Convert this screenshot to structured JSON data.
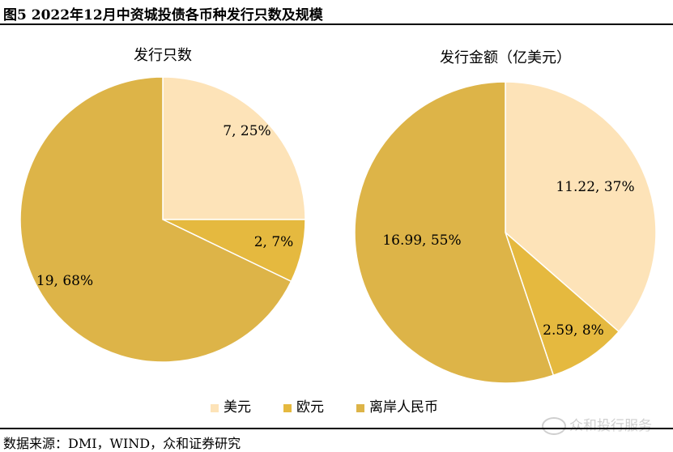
{
  "figure_title": "图5 2022年12月中资城投债各币种发行只数及规模",
  "source": "数据来源：DMI，WIND，众和证券研究",
  "watermark": "众和投行服务",
  "colors": {
    "美元": "#FDE3B8",
    "欧元": "#E5B93F",
    "离岸人民币": "#DDB448",
    "edge": "#ffffff"
  },
  "legend": [
    "美元",
    "欧元",
    "离岸人民币"
  ],
  "chart_data": [
    {
      "type": "pie",
      "title": "发行只数",
      "categories": [
        "美元",
        "欧元",
        "离岸人民币"
      ],
      "values": [
        7,
        2,
        19
      ],
      "percent": [
        25,
        7,
        68
      ],
      "labels": [
        "7, 25%",
        "2, 7%",
        "19, 68%"
      ]
    },
    {
      "type": "pie",
      "title": "发行金额（亿美元）",
      "categories": [
        "美元",
        "欧元",
        "离岸人民币"
      ],
      "values": [
        11.22,
        2.59,
        16.99
      ],
      "percent": [
        37,
        8,
        55
      ],
      "labels": [
        "11.22, 37%",
        "2.59, 8%",
        "16.99, 55%"
      ]
    }
  ]
}
